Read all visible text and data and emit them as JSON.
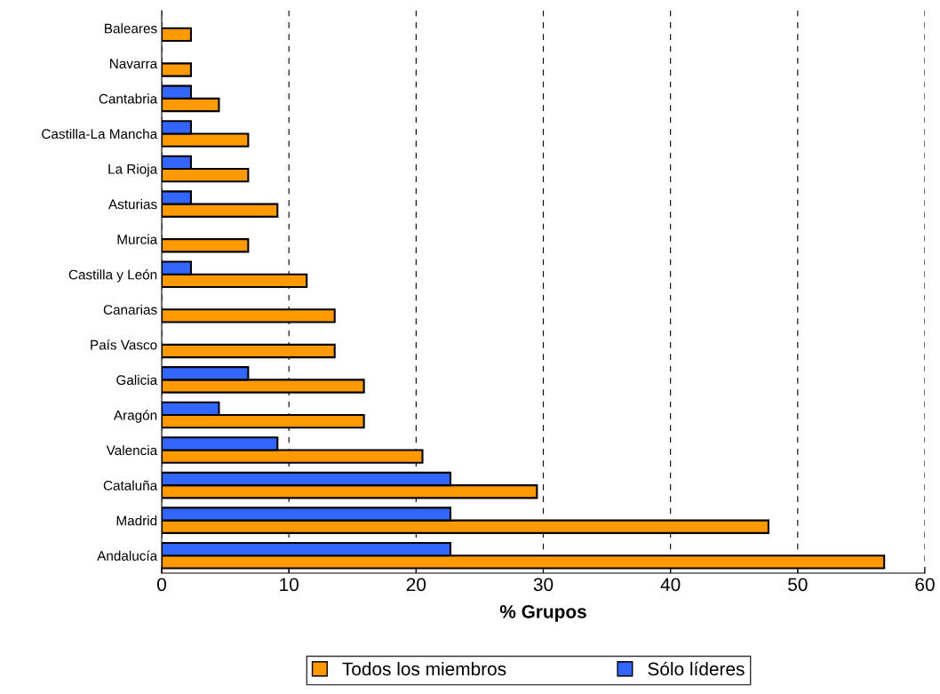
{
  "chart_data": {
    "type": "bar",
    "orientation": "horizontal",
    "xlabel": "% Grupos",
    "categories": [
      "Baleares",
      "Navarra",
      "Cantabria",
      "Castilla-La Mancha",
      "La Rioja",
      "Asturias",
      "Murcia",
      "Castilla y León",
      "Canarias",
      "País Vasco",
      "Galicia",
      "Aragón",
      "Valencia",
      "Cataluña",
      "Madrid",
      "Andalucía"
    ],
    "series": [
      {
        "name": "Todos los miembros",
        "color": "#ff9900",
        "values": [
          2.3,
          2.3,
          4.5,
          6.8,
          6.8,
          9.1,
          6.8,
          11.4,
          13.6,
          13.6,
          15.9,
          15.9,
          20.5,
          29.5,
          47.7,
          56.8
        ]
      },
      {
        "name": "Sólo líderes",
        "color": "#3366ff",
        "values": [
          null,
          null,
          2.3,
          2.3,
          2.3,
          2.3,
          null,
          2.3,
          null,
          null,
          6.8,
          4.5,
          9.1,
          22.7,
          22.7,
          22.7
        ]
      }
    ],
    "xlim": [
      0,
      60
    ],
    "xticks": [
      0,
      10,
      20,
      30,
      40,
      50,
      60
    ],
    "grid": "x",
    "legend": "bottom"
  }
}
